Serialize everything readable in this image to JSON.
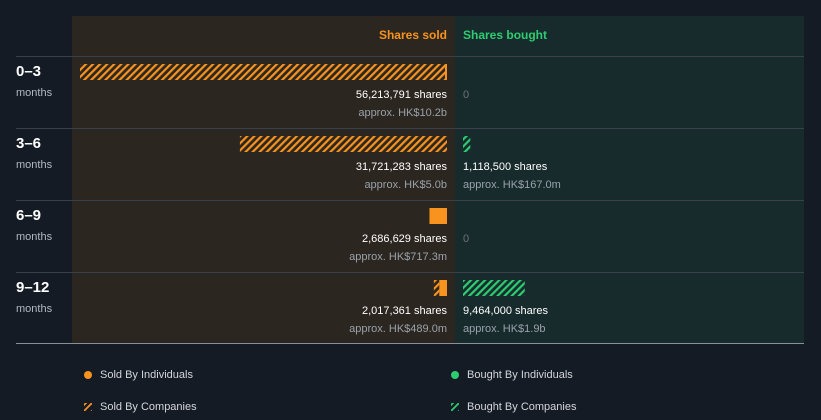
{
  "chart_data": {
    "type": "bar",
    "orientation": "horizontal-diverging",
    "headers": {
      "sold": "Shares sold",
      "bought": "Shares bought"
    },
    "categories": [
      {
        "label": "0–3",
        "unit": "months"
      },
      {
        "label": "3–6",
        "unit": "months"
      },
      {
        "label": "6–9",
        "unit": "months"
      },
      {
        "label": "9–12",
        "unit": "months"
      }
    ],
    "series": [
      {
        "name": "Sold By Individuals",
        "side": "sold",
        "color": "#f7931e",
        "pattern": "solid",
        "values": [
          0,
          0,
          2686629,
          1200000
        ]
      },
      {
        "name": "Sold By Companies",
        "side": "sold",
        "color": "#f7931e",
        "pattern": "hatched",
        "values": [
          56213791,
          31721283,
          0,
          817361
        ]
      },
      {
        "name": "Bought By Individuals",
        "side": "bought",
        "color": "#2ecc71",
        "pattern": "solid",
        "values": [
          0,
          0,
          0,
          0
        ]
      },
      {
        "name": "Bought By Companies",
        "side": "bought",
        "color": "#2ecc71",
        "pattern": "hatched",
        "values": [
          0,
          1118500,
          0,
          9464000
        ]
      }
    ],
    "sold_labels": [
      {
        "shares": "56,213,791 shares",
        "approx": "approx. HK$10.2b"
      },
      {
        "shares": "31,721,283 shares",
        "approx": "approx. HK$5.0b"
      },
      {
        "shares": "2,686,629 shares",
        "approx": "approx. HK$717.3m"
      },
      {
        "shares": "2,017,361 shares",
        "approx": "approx. HK$489.0m"
      }
    ],
    "bought_labels": [
      {
        "shares": "",
        "approx": "",
        "zero": "0"
      },
      {
        "shares": "1,118,500 shares",
        "approx": "approx. HK$167.0m",
        "zero": ""
      },
      {
        "shares": "",
        "approx": "",
        "zero": "0"
      },
      {
        "shares": "9,464,000 shares",
        "approx": "approx. HK$1.9b",
        "zero": ""
      }
    ],
    "colors": {
      "background": "#151b24",
      "sold_panel": "#2c2620",
      "bought_panel": "#172b2d",
      "sold_header": "#f7931e",
      "bought_header": "#2ecc71",
      "sold_accent": "#f7931e",
      "bought_accent": "#2ecc71"
    }
  },
  "legend": [
    {
      "label": "Sold By Individuals",
      "icon": "dot",
      "color": "#f7931e"
    },
    {
      "label": "Bought By Individuals",
      "icon": "dot",
      "color": "#2ecc71"
    },
    {
      "label": "Sold By Companies",
      "icon": "hatched-square",
      "color": "#f7931e"
    },
    {
      "label": "Bought By Companies",
      "icon": "hatched-square",
      "color": "#2ecc71"
    }
  ]
}
